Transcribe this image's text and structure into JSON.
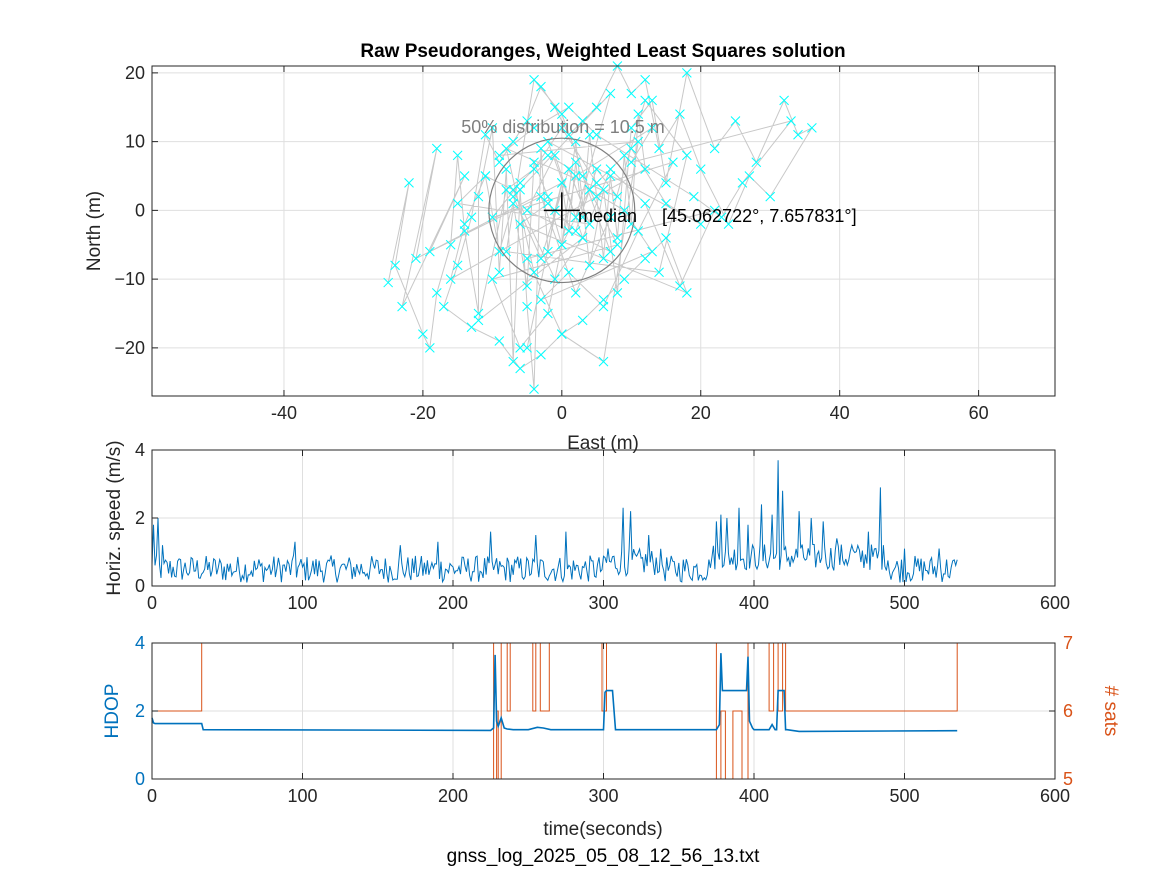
{
  "figure": {
    "filename": "gnss_log_2025_05_08_12_56_13.txt",
    "colors": {
      "background": "#ffffff",
      "axis": "#262626",
      "grid": "#dfdfdf",
      "scatter_marker": "#00ffff",
      "scatter_path": "#c8c8c8",
      "circle": "#7f7f7f",
      "median_cross": "#000000",
      "speed_line": "#0072bd",
      "hdop_line": "#0072bd",
      "sats_line": "#d95319",
      "annotation_gray": "#7f7f7f"
    }
  },
  "chart_data": [
    {
      "type": "scatter",
      "title": "Raw Pseudoranges, Weighted Least Squares solution",
      "xlabel": "East (m)",
      "ylabel": "North (m)",
      "xlim": [
        -59,
        71
      ],
      "ylim": [
        -27,
        21
      ],
      "xticks": [
        -40,
        -20,
        0,
        20,
        40,
        60
      ],
      "yticks": [
        -20,
        -10,
        0,
        10,
        20
      ],
      "grid": true,
      "marker": "x",
      "connected_path": true,
      "median_label": "median",
      "median_coords": "[45.062722°, 7.657831°]",
      "median": [
        0,
        0
      ],
      "distribution_label": "50% distribution = 10.5 m",
      "radius_50": 10.5,
      "points_x": [
        -25,
        -22,
        -24,
        -20,
        -19,
        -18,
        -16,
        -15,
        -14,
        -12,
        -12,
        -10,
        -9,
        -8,
        -7,
        -6,
        -5,
        -4,
        -3,
        -2,
        -1,
        0,
        1,
        2,
        3,
        4,
        5,
        6,
        7,
        8,
        9,
        10,
        11,
        12,
        -16,
        -14,
        -11,
        -9,
        -7,
        -5,
        -4,
        -2,
        0,
        2,
        4,
        6,
        8,
        10,
        13,
        15,
        18,
        22,
        25,
        28,
        32,
        34,
        36,
        30,
        27,
        24,
        20,
        17,
        14,
        12,
        10,
        8,
        5,
        3,
        1,
        -1,
        -3,
        -5,
        -7,
        -9,
        -11,
        -13,
        -15,
        -17,
        -13,
        -9,
        -6,
        -3,
        0,
        3,
        6,
        9,
        12,
        15,
        18,
        -6,
        -2,
        2,
        5,
        8,
        -8,
        -4,
        0,
        4,
        9,
        13,
        -3,
        1,
        6,
        11,
        16,
        -10,
        -6,
        -2,
        3,
        7,
        -5,
        -1,
        3,
        -12,
        -8,
        -4,
        0,
        5,
        10,
        15,
        20,
        -2,
        2,
        7,
        -7,
        -3,
        1,
        4,
        -15,
        -11,
        -7,
        -1,
        3,
        7,
        12,
        17,
        22,
        -5,
        0,
        6,
        11,
        -9,
        -4,
        1,
        5,
        19,
        23,
        26,
        33,
        10,
        13,
        2,
        -2,
        -6,
        -10,
        8,
        4,
        0,
        -4,
        -8,
        14,
        18,
        12,
        7,
        2,
        -3,
        -21,
        -18,
        -23,
        -14,
        -19,
        0,
        -5
      ],
      "points_y": [
        -10.5,
        4,
        -8,
        -18,
        -20,
        -12,
        -5,
        8,
        -3,
        -15,
        2,
        12,
        -9,
        6,
        -22,
        3,
        -14,
        -26,
        9,
        -6,
        0,
        4,
        -3,
        7,
        -1,
        11,
        2,
        -7,
        5,
        -4,
        8,
        -2,
        14,
        6,
        -10,
        -2,
        5,
        -6,
        1,
        -11,
        7,
        2,
        -5,
        10,
        -8,
        3,
        -12,
        12,
        16,
        4,
        20,
        9,
        13,
        7,
        16,
        11,
        12,
        2,
        5,
        -2,
        6,
        14,
        9,
        19,
        17,
        21,
        15,
        13,
        11,
        15,
        18,
        13,
        10,
        7,
        11,
        -1,
        -8,
        -14,
        -17,
        -19,
        -23,
        -21,
        -18,
        -16,
        -13,
        -10,
        -7,
        -4,
        -12,
        -2,
        1,
        -3,
        6,
        2,
        9,
        -9,
        -5,
        3,
        0,
        -6,
        -13,
        -9,
        -14,
        -3,
        7,
        -1,
        4,
        8,
        5,
        -6,
        0,
        8,
        -4,
        -16,
        3,
        6,
        12,
        4,
        9,
        1,
        -2,
        10,
        -1,
        17,
        2,
        -7,
        6,
        -2,
        1,
        5,
        3,
        -10,
        -4,
        6,
        1,
        -11,
        0,
        -7,
        -18,
        -22,
        10,
        8,
        12,
        15,
        11,
        2,
        -1,
        4,
        13,
        7,
        12,
        5,
        -15,
        -20,
        -10,
        -5,
        3,
        14,
        19,
        -6,
        -9,
        8,
        16,
        -1,
        -12,
        2,
        -7,
        9,
        -14,
        5,
        -6,
        4,
        -20,
        1,
        -8
      ],
      "colors": {
        "marker": "#00ffff",
        "path": "#c8c8c8"
      }
    },
    {
      "type": "line",
      "title": "",
      "xlabel": "",
      "ylabel": "Horiz. speed (m/s)",
      "xlim": [
        0,
        600
      ],
      "ylim": [
        0,
        4
      ],
      "xticks": [
        0,
        100,
        200,
        300,
        400,
        500,
        600
      ],
      "yticks": [
        0,
        2,
        4
      ],
      "grid": true,
      "x_end": 535,
      "baseline_mean": 0.5,
      "spikes": [
        {
          "x": 1,
          "y": 1.8
        },
        {
          "x": 4,
          "y": 2.0
        },
        {
          "x": 7,
          "y": 1.2
        },
        {
          "x": 95,
          "y": 1.3
        },
        {
          "x": 165,
          "y": 1.2
        },
        {
          "x": 190,
          "y": 1.3
        },
        {
          "x": 225,
          "y": 1.6
        },
        {
          "x": 255,
          "y": 1.5
        },
        {
          "x": 275,
          "y": 1.6
        },
        {
          "x": 303,
          "y": 1.1
        },
        {
          "x": 313,
          "y": 2.3
        },
        {
          "x": 318,
          "y": 2.2
        },
        {
          "x": 330,
          "y": 1.5
        },
        {
          "x": 375,
          "y": 1.9
        },
        {
          "x": 378,
          "y": 2.1
        },
        {
          "x": 382,
          "y": 2.0
        },
        {
          "x": 390,
          "y": 2.3
        },
        {
          "x": 396,
          "y": 1.8
        },
        {
          "x": 405,
          "y": 2.4
        },
        {
          "x": 412,
          "y": 2.1
        },
        {
          "x": 416,
          "y": 3.7
        },
        {
          "x": 419,
          "y": 2.8
        },
        {
          "x": 430,
          "y": 2.2
        },
        {
          "x": 438,
          "y": 2.0
        },
        {
          "x": 446,
          "y": 1.9
        },
        {
          "x": 455,
          "y": 1.4
        },
        {
          "x": 465,
          "y": 1.2
        },
        {
          "x": 476,
          "y": 1.6
        },
        {
          "x": 484,
          "y": 2.9
        },
        {
          "x": 500,
          "y": 1.1
        },
        {
          "x": 523,
          "y": 1.1
        }
      ],
      "colors": {
        "line": "#0072bd"
      }
    },
    {
      "type": "line",
      "title": "",
      "xlabel": "time(seconds)",
      "ylabel": "HDOP",
      "ylabel_right": "# sats",
      "xlim": [
        0,
        600
      ],
      "ylim": [
        0,
        4
      ],
      "ylim_right": [
        5,
        7
      ],
      "xticks": [
        0,
        100,
        200,
        300,
        400,
        500,
        600
      ],
      "yticks": [
        0,
        2,
        4
      ],
      "yticks_right": [
        5,
        6,
        7
      ],
      "grid": true,
      "series": [
        {
          "name": "HDOP",
          "x": [
            0,
            1,
            2,
            33,
            34,
            225,
            227,
            228,
            229,
            230,
            232,
            234,
            236,
            240,
            250,
            256,
            260,
            265,
            300,
            301,
            302,
            304,
            306,
            308,
            375,
            377,
            378,
            379,
            380,
            382,
            384,
            386,
            390,
            391,
            395,
            396,
            397,
            399,
            400,
            402,
            404,
            410,
            412,
            414,
            415,
            416,
            418,
            420,
            421,
            422,
            430,
            535
          ],
          "y": [
            1.8,
            1.65,
            1.63,
            1.63,
            1.45,
            1.43,
            1.5,
            3.65,
            1.7,
            1.55,
            1.8,
            1.5,
            1.47,
            1.45,
            1.45,
            1.52,
            1.5,
            1.45,
            1.45,
            2.55,
            2.6,
            2.6,
            2.6,
            1.45,
            1.45,
            1.6,
            3.7,
            2.6,
            2.6,
            2.6,
            2.6,
            2.6,
            2.6,
            2.6,
            2.6,
            3.6,
            1.7,
            1.5,
            1.45,
            1.45,
            1.45,
            1.45,
            1.6,
            1.45,
            1.45,
            2.6,
            2.6,
            2.6,
            1.45,
            1.45,
            1.4,
            1.42
          ],
          "color": "#0072bd"
        },
        {
          "name": "# sats",
          "x": [
            0,
            33,
            33,
            227,
            227,
            229,
            229,
            230,
            230,
            232,
            232,
            236,
            236,
            238,
            238,
            253,
            253,
            255,
            255,
            258,
            258,
            264,
            264,
            299,
            299,
            302,
            302,
            375,
            375,
            378,
            378,
            381,
            381,
            386,
            386,
            392,
            392,
            396,
            396,
            410,
            410,
            413,
            413,
            416,
            416,
            419,
            419,
            421,
            421,
            535,
            535
          ],
          "y": [
            6,
            6,
            7,
            7,
            5,
            5,
            6,
            6,
            5,
            5,
            7,
            7,
            6,
            6,
            7,
            7,
            6,
            6,
            7,
            7,
            6,
            6,
            7,
            7,
            6,
            6,
            7,
            7,
            5,
            5,
            6,
            6,
            5,
            5,
            6,
            6,
            5,
            5,
            7,
            7,
            6,
            6,
            7,
            7,
            6,
            6,
            7,
            7,
            6,
            6,
            7
          ],
          "color": "#d95319"
        }
      ]
    }
  ]
}
